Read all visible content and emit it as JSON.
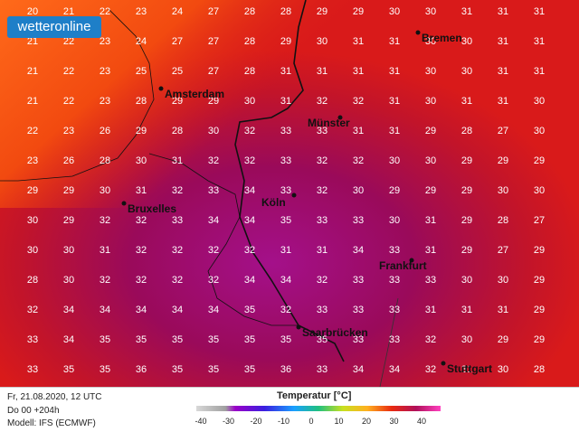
{
  "logo": {
    "text": "wetteronline"
  },
  "footer": {
    "date": "Fr, 21.08.2020, 12 UTC",
    "run": "Do 00 +204h",
    "model": "Modell: IFS (ECMWF)",
    "legend_title": "Temperatur [°C]",
    "legend_ticks": [
      "-40",
      "-30",
      "-20",
      "-10",
      "0",
      "10",
      "20",
      "30",
      "40"
    ]
  },
  "cities": [
    {
      "name": "Bremen"
    },
    {
      "name": "Amsterdam"
    },
    {
      "name": "Münster"
    },
    {
      "name": "Köln"
    },
    {
      "name": "Bruxelles"
    },
    {
      "name": "Frankfurt"
    },
    {
      "name": "Saarbrücken"
    },
    {
      "name": "Stuttgart"
    }
  ],
  "grid": {
    "rows": [
      [
        "20",
        "21",
        "22",
        "23",
        "24",
        "27",
        "28",
        "28",
        "29",
        "29",
        "30",
        "30",
        "31",
        "31",
        "31"
      ],
      [
        "21",
        "22",
        "23",
        "24",
        "27",
        "27",
        "28",
        "29",
        "30",
        "31",
        "31",
        "30",
        "30",
        "31",
        "31"
      ],
      [
        "21",
        "22",
        "23",
        "25",
        "25",
        "27",
        "28",
        "31",
        "31",
        "31",
        "31",
        "30",
        "30",
        "31",
        "31"
      ],
      [
        "21",
        "22",
        "23",
        "28",
        "29",
        "29",
        "30",
        "31",
        "32",
        "32",
        "31",
        "30",
        "31",
        "31",
        "30"
      ],
      [
        "22",
        "23",
        "26",
        "29",
        "28",
        "30",
        "32",
        "33",
        "33",
        "31",
        "31",
        "29",
        "28",
        "27",
        "30"
      ],
      [
        "23",
        "26",
        "28",
        "30",
        "31",
        "32",
        "32",
        "33",
        "32",
        "32",
        "30",
        "30",
        "29",
        "29",
        "29"
      ],
      [
        "29",
        "29",
        "30",
        "31",
        "32",
        "33",
        "34",
        "33",
        "32",
        "30",
        "29",
        "29",
        "29",
        "30",
        "30"
      ],
      [
        "30",
        "29",
        "32",
        "32",
        "33",
        "34",
        "34",
        "35",
        "33",
        "33",
        "30",
        "31",
        "29",
        "28",
        "27"
      ],
      [
        "30",
        "30",
        "31",
        "32",
        "32",
        "32",
        "32",
        "31",
        "31",
        "34",
        "33",
        "31",
        "29",
        "27",
        "29"
      ],
      [
        "28",
        "30",
        "32",
        "32",
        "32",
        "32",
        "34",
        "34",
        "32",
        "33",
        "33",
        "33",
        "30",
        "30",
        "29"
      ],
      [
        "32",
        "34",
        "34",
        "34",
        "34",
        "34",
        "35",
        "32",
        "33",
        "33",
        "33",
        "31",
        "31",
        "31",
        "29"
      ],
      [
        "33",
        "34",
        "35",
        "35",
        "35",
        "35",
        "35",
        "35",
        "35",
        "33",
        "33",
        "32",
        "30",
        "29",
        "29"
      ],
      [
        "33",
        "35",
        "35",
        "36",
        "35",
        "35",
        "35",
        "36",
        "33",
        "34",
        "34",
        "32",
        "31",
        "30",
        "28"
      ]
    ]
  },
  "colors": {
    "hot": "#d91a1a",
    "hotter": "#b0103a",
    "hottest": "#9a0a6a",
    "warm": "#f24a10",
    "mild": "#ff6a1a",
    "border": "#111111"
  }
}
